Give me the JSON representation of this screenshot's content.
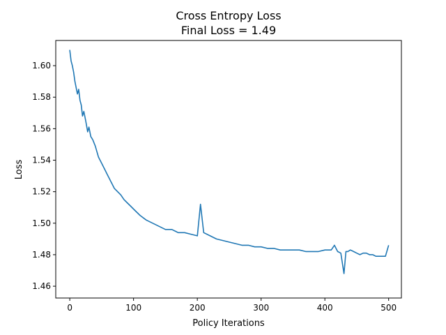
{
  "chart_data": {
    "type": "line",
    "title": "Cross Entropy Loss",
    "subtitle": "Final Loss = 1.49",
    "xlabel": "Policy Iterations",
    "ylabel": "Loss",
    "xlim": [
      -22,
      520
    ],
    "ylim": [
      1.4525,
      1.616
    ],
    "xticks": [
      0,
      100,
      200,
      300,
      400,
      500
    ],
    "yticks": [
      1.46,
      1.48,
      1.5,
      1.52,
      1.54,
      1.56,
      1.58,
      1.6
    ],
    "yticklabels": [
      "1.46",
      "1.48",
      "1.50",
      "1.52",
      "1.54",
      "1.56",
      "1.58",
      "1.60"
    ],
    "grid": false,
    "series": [
      {
        "color": "#1f77b4",
        "x": [
          0,
          2,
          4,
          6,
          8,
          10,
          12,
          14,
          16,
          18,
          20,
          22,
          25,
          28,
          30,
          33,
          36,
          40,
          45,
          50,
          55,
          60,
          65,
          70,
          75,
          80,
          85,
          90,
          95,
          100,
          110,
          120,
          130,
          140,
          150,
          160,
          170,
          180,
          190,
          200,
          205,
          210,
          220,
          230,
          240,
          250,
          260,
          270,
          280,
          290,
          300,
          310,
          320,
          330,
          340,
          350,
          360,
          370,
          380,
          390,
          400,
          410,
          415,
          420,
          425,
          430,
          433,
          436,
          440,
          445,
          450,
          455,
          460,
          465,
          470,
          475,
          480,
          485,
          490,
          495,
          500
        ],
        "y": [
          1.61,
          1.603,
          1.6,
          1.596,
          1.59,
          1.586,
          1.582,
          1.585,
          1.578,
          1.575,
          1.568,
          1.571,
          1.565,
          1.558,
          1.561,
          1.555,
          1.553,
          1.549,
          1.542,
          1.538,
          1.534,
          1.53,
          1.526,
          1.522,
          1.52,
          1.518,
          1.515,
          1.513,
          1.511,
          1.509,
          1.505,
          1.502,
          1.5,
          1.498,
          1.496,
          1.496,
          1.494,
          1.494,
          1.493,
          1.492,
          1.512,
          1.494,
          1.492,
          1.49,
          1.489,
          1.488,
          1.487,
          1.486,
          1.486,
          1.485,
          1.485,
          1.484,
          1.484,
          1.483,
          1.483,
          1.483,
          1.483,
          1.482,
          1.482,
          1.482,
          1.483,
          1.483,
          1.486,
          1.482,
          1.481,
          1.468,
          1.482,
          1.482,
          1.483,
          1.482,
          1.481,
          1.48,
          1.481,
          1.481,
          1.48,
          1.48,
          1.479,
          1.479,
          1.479,
          1.479,
          1.486
        ]
      }
    ]
  }
}
